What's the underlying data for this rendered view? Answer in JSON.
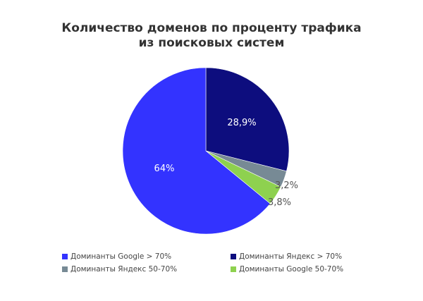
{
  "chart_data": {
    "type": "pie",
    "title": "Количество доменов по проценту трафика из поисковых систем",
    "title_lines": [
      "Количество доменов по проценту трафика",
      "из поисковых систем"
    ],
    "start_angle_deg": 0,
    "direction": "clockwise",
    "slices": [
      {
        "name": "Доминанты Яндекс > 70%",
        "value": 28.9,
        "label": "28,9%",
        "color": "#0d0d7e",
        "label_inside": true
      },
      {
        "name": "Доминанты Яндекс 50-70%",
        "value": 3.2,
        "label": "3,2%",
        "color": "#778a95",
        "label_inside": false
      },
      {
        "name": "Доминанты Google 50-70%",
        "value": 3.8,
        "label": "3,8%",
        "color": "#8ed14f",
        "label_inside": false
      },
      {
        "name": "Доминанты Google > 70%",
        "value": 64,
        "label": "64%",
        "color": "#3333ff",
        "label_inside": true
      }
    ],
    "legend": [
      {
        "label": "Доминанты Google > 70%",
        "color": "#3333ff"
      },
      {
        "label": "Доминанты Яндекс > 70%",
        "color": "#0d0d7e"
      },
      {
        "label": "Доминанты Яндекс 50-70%",
        "color": "#778a95"
      },
      {
        "label": "Доминанты Google 50-70%",
        "color": "#8ed14f"
      }
    ],
    "legend_position": "bottom"
  }
}
